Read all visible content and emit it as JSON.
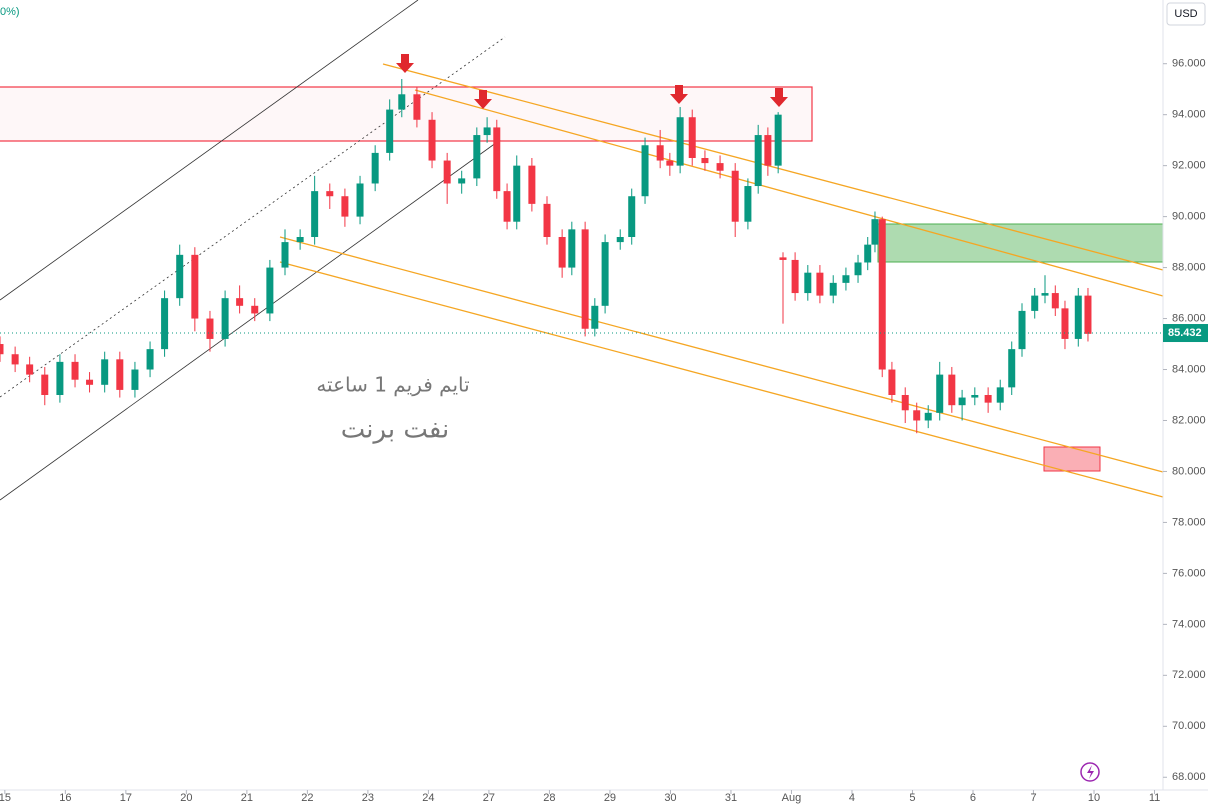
{
  "chart_data": {
    "type": "candlestick",
    "corner_text": "0%)",
    "currency": "USD",
    "annotations": [
      "تایم فریم 1 ساعته",
      "نفت برنت"
    ],
    "last_price": 85.432,
    "up_color": "#089981",
    "down_color": "#f23645",
    "xlim": [
      -0.08,
      19.14
    ],
    "xticks": [
      {
        "value": 0,
        "label": "15"
      },
      {
        "value": 1,
        "label": "16"
      },
      {
        "value": 2,
        "label": "17"
      },
      {
        "value": 3,
        "label": "20"
      },
      {
        "value": 4,
        "label": "21"
      },
      {
        "value": 5,
        "label": "22"
      },
      {
        "value": 6,
        "label": "23"
      },
      {
        "value": 7,
        "label": "24"
      },
      {
        "value": 8,
        "label": "27"
      },
      {
        "value": 9,
        "label": "28"
      },
      {
        "value": 10,
        "label": "29"
      },
      {
        "value": 11,
        "label": "30"
      },
      {
        "value": 12,
        "label": "31"
      },
      {
        "value": 13,
        "label": "Aug"
      },
      {
        "value": 14,
        "label": "4"
      },
      {
        "value": 15,
        "label": "5"
      },
      {
        "value": 16,
        "label": "6"
      },
      {
        "value": 17,
        "label": "7"
      },
      {
        "value": 18,
        "label": "10"
      },
      {
        "value": 19,
        "label": "11"
      }
    ],
    "ylim": [
      67.5,
      98.5
    ],
    "yticks": [
      {
        "value": 68,
        "label": "68.000"
      },
      {
        "value": 70,
        "label": "70.000"
      },
      {
        "value": 72,
        "label": "72.000"
      },
      {
        "value": 74,
        "label": "74.000"
      },
      {
        "value": 76,
        "label": "76.000"
      },
      {
        "value": 78,
        "label": "78.000"
      },
      {
        "value": 80,
        "label": "80.000"
      },
      {
        "value": 82,
        "label": "82.000"
      },
      {
        "value": 84,
        "label": "84.000"
      },
      {
        "value": 86,
        "label": "86.000"
      },
      {
        "value": 88,
        "label": "88.000"
      },
      {
        "value": 90,
        "label": "90.000"
      },
      {
        "value": 92,
        "label": "92.000"
      },
      {
        "value": 94,
        "label": "94.000"
      },
      {
        "value": 96,
        "label": "96.000"
      }
    ],
    "x": [
      -0.08,
      0.17,
      0.41,
      0.66,
      0.91,
      1.16,
      1.4,
      1.65,
      1.9,
      2.15,
      2.4,
      2.64,
      2.89,
      3.14,
      3.39,
      3.64,
      3.88,
      4.13,
      4.38,
      4.63,
      4.88,
      5.12,
      5.37,
      5.62,
      5.87,
      6.12,
      6.36,
      6.56,
      6.81,
      7.06,
      7.31,
      7.55,
      7.8,
      7.97,
      8.13,
      8.3,
      8.46,
      8.71,
      8.96,
      9.21,
      9.37,
      9.59,
      9.75,
      9.92,
      10.17,
      10.36,
      10.58,
      10.83,
      10.99,
      11.16,
      11.36,
      11.57,
      11.82,
      12.07,
      12.28,
      12.45,
      12.61,
      12.78,
      12.86,
      13.06,
      13.27,
      13.47,
      13.69,
      13.9,
      14.1,
      14.26,
      14.38,
      14.5,
      14.66,
      14.88,
      15.07,
      15.26,
      15.45,
      15.65,
      15.82,
      16.03,
      16.25,
      16.45,
      16.64,
      16.81,
      17.02,
      17.19,
      17.36,
      17.52,
      17.74,
      17.9
    ],
    "open": [
      85.0,
      84.6,
      84.2,
      83.8,
      83.0,
      84.3,
      83.6,
      83.4,
      84.4,
      83.2,
      84.0,
      84.8,
      86.8,
      88.5,
      86.0,
      85.2,
      86.8,
      86.5,
      86.2,
      88.0,
      89.0,
      89.2,
      91.0,
      90.8,
      90.0,
      91.3,
      92.5,
      94.2,
      94.8,
      93.8,
      92.2,
      91.3,
      91.5,
      93.2,
      93.5,
      91.0,
      89.8,
      92.0,
      90.5,
      89.2,
      88.0,
      89.5,
      85.6,
      86.5,
      89.0,
      89.2,
      90.8,
      92.8,
      92.2,
      92.0,
      93.9,
      92.3,
      92.1,
      91.8,
      89.8,
      91.2,
      93.2,
      92.0,
      88.4,
      88.3,
      87.0,
      87.8,
      86.9,
      87.4,
      87.7,
      88.2,
      88.9,
      89.9,
      84.0,
      83.0,
      82.4,
      82.0,
      82.3,
      83.8,
      82.6,
      82.9,
      83.0,
      82.7,
      83.3,
      84.8,
      86.3,
      86.9,
      87.0,
      86.4,
      85.2,
      86.9
    ],
    "high": [
      85.3,
      84.9,
      84.5,
      84.1,
      84.6,
      84.6,
      83.9,
      84.7,
      84.7,
      84.3,
      85.1,
      87.1,
      88.9,
      88.8,
      86.3,
      87.1,
      87.3,
      86.8,
      88.3,
      89.5,
      89.5,
      91.6,
      91.3,
      91.1,
      91.6,
      92.8,
      94.6,
      95.4,
      95.1,
      94.1,
      92.5,
      91.8,
      93.5,
      93.9,
      93.8,
      91.3,
      92.4,
      92.3,
      90.8,
      89.5,
      89.8,
      89.8,
      86.8,
      89.3,
      89.5,
      91.1,
      93.1,
      93.4,
      92.5,
      94.3,
      94.2,
      92.6,
      92.4,
      92.1,
      91.5,
      93.6,
      93.5,
      94.1,
      88.6,
      88.6,
      88.1,
      88.1,
      87.7,
      88.0,
      88.5,
      89.2,
      90.2,
      90.0,
      84.3,
      83.3,
      82.7,
      82.6,
      84.3,
      84.1,
      83.2,
      83.3,
      83.3,
      83.6,
      85.1,
      86.6,
      87.2,
      87.7,
      87.3,
      86.7,
      87.2,
      87.2
    ],
    "low": [
      84.3,
      83.9,
      83.5,
      82.6,
      82.7,
      83.3,
      83.1,
      83.1,
      82.9,
      82.9,
      83.7,
      84.5,
      86.5,
      85.5,
      84.7,
      84.9,
      86.2,
      85.9,
      85.9,
      87.7,
      88.7,
      88.9,
      90.3,
      89.6,
      89.7,
      91.0,
      92.2,
      93.9,
      93.5,
      91.9,
      90.5,
      90.9,
      91.2,
      92.9,
      90.7,
      89.5,
      89.5,
      90.2,
      88.9,
      87.6,
      87.7,
      85.3,
      85.3,
      86.2,
      88.7,
      88.9,
      90.5,
      91.9,
      91.6,
      91.7,
      92.0,
      91.8,
      91.5,
      89.2,
      89.5,
      90.9,
      91.6,
      91.7,
      85.8,
      86.7,
      86.7,
      86.6,
      86.6,
      87.1,
      87.4,
      87.9,
      88.6,
      83.7,
      82.7,
      81.9,
      81.5,
      81.7,
      82.0,
      82.3,
      82.0,
      82.6,
      82.3,
      82.4,
      83.0,
      84.5,
      86.0,
      86.6,
      86.1,
      84.8,
      84.9,
      85.1
    ],
    "close": [
      84.6,
      84.2,
      83.8,
      83.0,
      84.3,
      83.6,
      83.4,
      84.4,
      83.2,
      84.0,
      84.8,
      86.8,
      88.5,
      86.0,
      85.2,
      86.8,
      86.5,
      86.2,
      88.0,
      89.0,
      89.2,
      91.0,
      90.8,
      90.0,
      91.3,
      92.5,
      94.2,
      94.8,
      93.8,
      92.2,
      91.3,
      91.5,
      93.2,
      93.5,
      91.0,
      89.8,
      92.0,
      90.5,
      89.2,
      88.0,
      89.5,
      85.6,
      86.5,
      89.0,
      89.2,
      90.8,
      92.8,
      92.2,
      92.0,
      93.9,
      92.3,
      92.1,
      91.8,
      89.8,
      91.2,
      93.2,
      92.0,
      94.0,
      88.3,
      87.0,
      87.8,
      86.9,
      87.4,
      87.7,
      88.2,
      88.9,
      89.9,
      84.0,
      83.0,
      82.4,
      82.0,
      82.3,
      83.8,
      82.6,
      82.9,
      83.0,
      82.7,
      83.3,
      84.8,
      86.3,
      86.9,
      87.0,
      86.4,
      85.2,
      86.9,
      85.4
    ]
  }
}
